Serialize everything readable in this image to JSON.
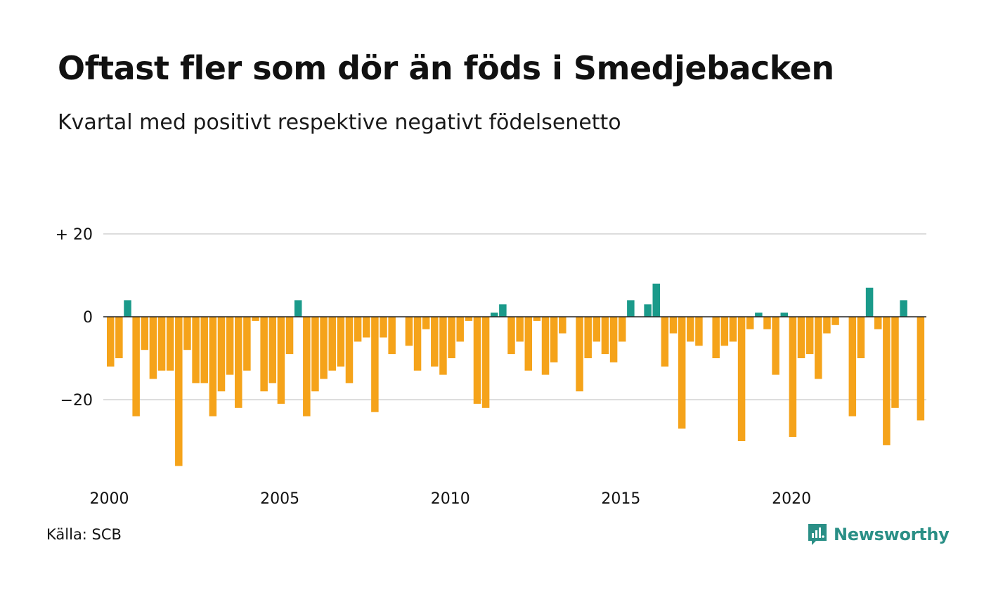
{
  "title": "Oftast fler som dör än föds i Smedjebacken",
  "subtitle": "Kvartal med positivt respektive negativt födelsenetto",
  "source": "Källa: SCB",
  "brand": {
    "name": "Newsworthy",
    "icon": "newsworthy-logo-icon",
    "color": "#2a8f86"
  },
  "chart_data": {
    "type": "bar",
    "title": "Oftast fler som dör än föds i Smedjebacken",
    "subtitle": "Kvartal med positivt respektive negativt födelsenetto",
    "xlabel": "",
    "ylabel": "",
    "x_start_year": 2000,
    "x_ticks": [
      "2000",
      "2005",
      "2010",
      "2015",
      "2020"
    ],
    "y_ticks": [
      {
        "value": 20,
        "label": "+ 20"
      },
      {
        "value": 0,
        "label": "0"
      },
      {
        "value": -20,
        "label": "−20"
      }
    ],
    "ylim": [
      -37,
      20
    ],
    "grid": true,
    "colors": {
      "positive": "#1a9a8a",
      "negative": "#f5a31a",
      "grid": "#dddddd",
      "zero_line": "#222222"
    },
    "values": [
      -12,
      -10,
      4,
      -24,
      -8,
      -15,
      -13,
      -13,
      -36,
      -8,
      -16,
      -16,
      -24,
      -18,
      -14,
      -22,
      -13,
      -1,
      -18,
      -16,
      -21,
      -9,
      4,
      -24,
      -18,
      -15,
      -13,
      -12,
      -16,
      -6,
      -5,
      -23,
      -5,
      -9,
      0,
      -7,
      -13,
      -3,
      -12,
      -14,
      -10,
      -6,
      -1,
      -21,
      -22,
      1,
      3,
      -9,
      -6,
      -13,
      -1,
      -14,
      -11,
      -4,
      0,
      -18,
      -10,
      -6,
      -9,
      -11,
      -6,
      4,
      0,
      3,
      8,
      -12,
      -4,
      -27,
      -6,
      -7,
      0,
      -10,
      -7,
      -6,
      -30,
      -3,
      1,
      -3,
      -14,
      1,
      -29,
      -10,
      -9,
      -15,
      -4,
      -2,
      0,
      -24,
      -10,
      7,
      -3,
      -31,
      -22,
      4,
      0,
      -25
    ]
  }
}
